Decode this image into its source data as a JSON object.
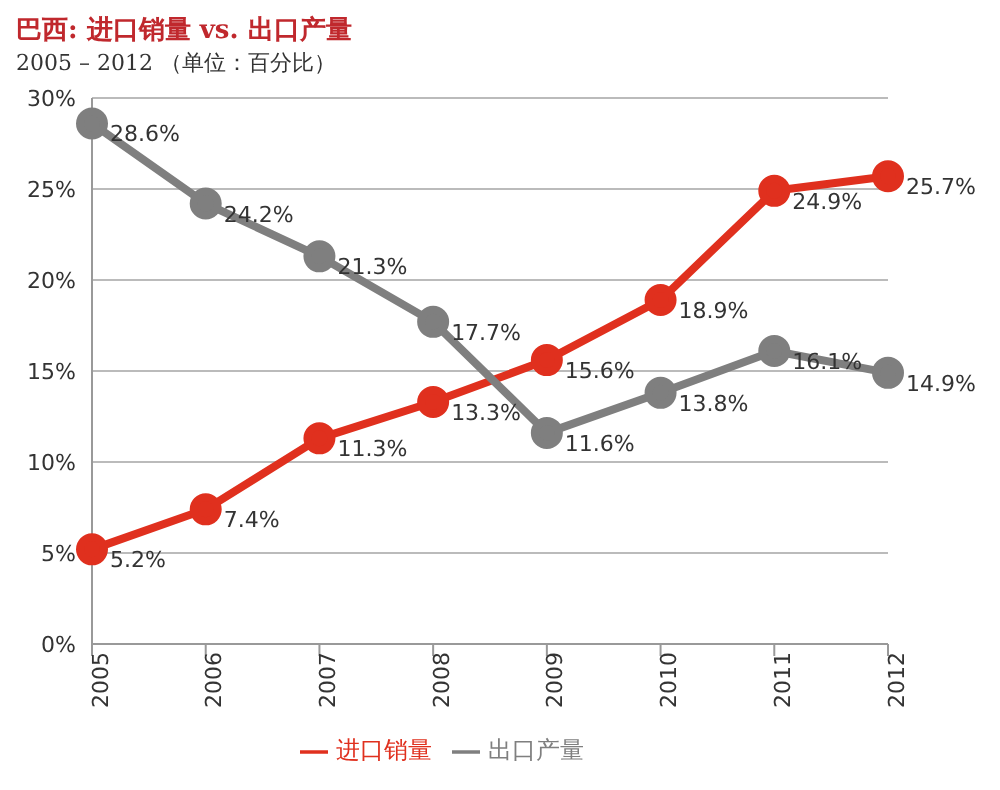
{
  "chart_data": {
    "type": "line",
    "title": "巴西: 进口销量 vs. 出口产量",
    "subtitle": "2005 – 2012 （单位：百分比）",
    "categories": [
      "2005",
      "2006",
      "2007",
      "2008",
      "2009",
      "2010",
      "2011",
      "2012"
    ],
    "series": [
      {
        "name": "进口销量",
        "color": "#e0301e",
        "values": [
          5.2,
          7.4,
          11.3,
          13.3,
          15.6,
          18.9,
          24.9,
          25.7
        ],
        "value_labels": [
          "5.2%",
          "7.4%",
          "11.3%",
          "13.3%",
          "15.6%",
          "18.9%",
          "24.9%",
          "25.7%"
        ]
      },
      {
        "name": "出口产量",
        "color": "#7f7f7f",
        "values": [
          28.6,
          24.2,
          21.3,
          17.7,
          11.6,
          13.8,
          16.1,
          14.9
        ],
        "value_labels": [
          "28.6%",
          "24.2%",
          "21.3%",
          "17.7%",
          "11.6%",
          "13.8%",
          "16.1%",
          "14.9%"
        ]
      }
    ],
    "ylim": [
      0,
      30
    ],
    "yticks": [
      {
        "value": 0,
        "label": "0%"
      },
      {
        "value": 5,
        "label": "5%"
      },
      {
        "value": 10,
        "label": "10%"
      },
      {
        "value": 15,
        "label": "15%"
      },
      {
        "value": 20,
        "label": "20%"
      },
      {
        "value": 25,
        "label": "25%"
      },
      {
        "value": 30,
        "label": "30%"
      }
    ],
    "grid": "y",
    "legend": "bottom",
    "marker": "circle",
    "line_style": "solid"
  }
}
